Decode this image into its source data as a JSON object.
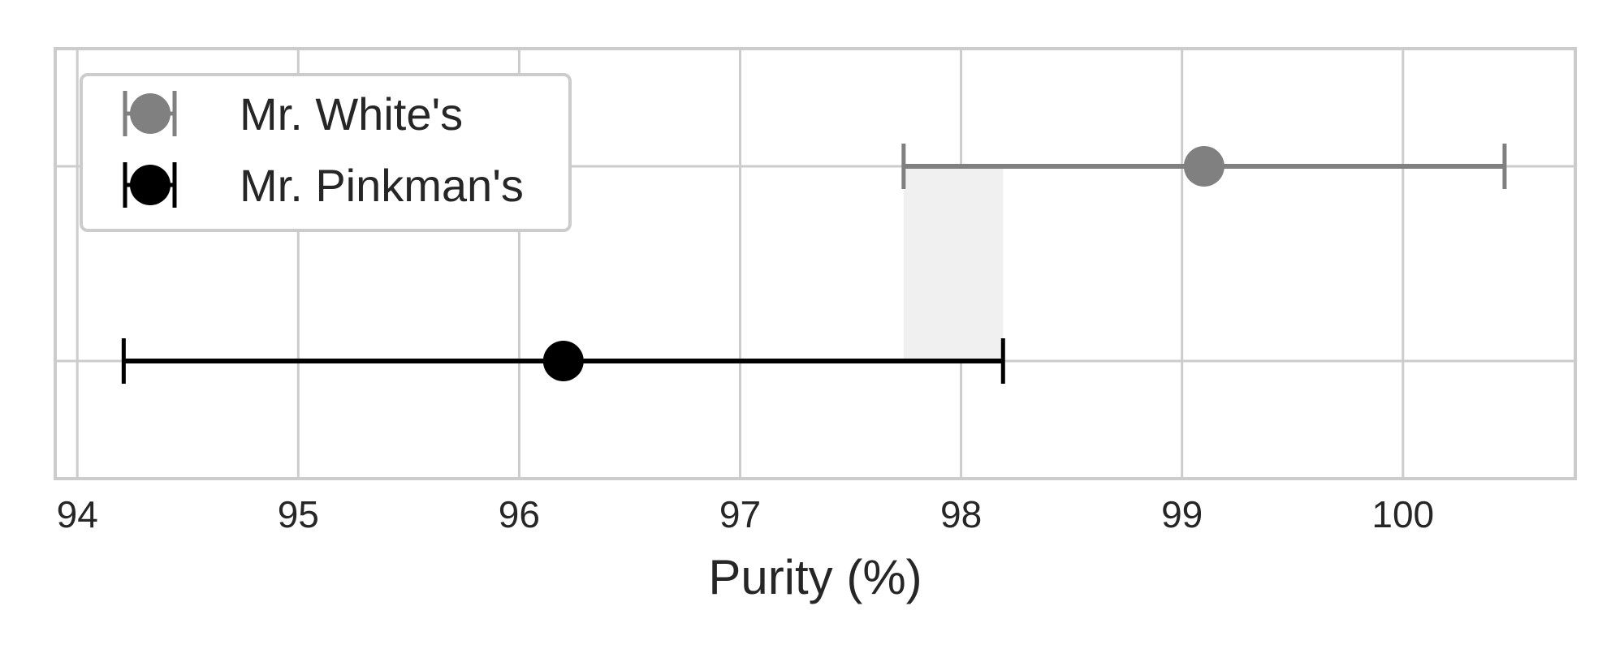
{
  "chart_data": {
    "type": "errorbar",
    "xlabel": "Purity (%)",
    "xlim": [
      93.9,
      100.78
    ],
    "xticks": [
      94,
      95,
      96,
      97,
      98,
      99,
      100
    ],
    "grid": true,
    "legend_placement": "top-left",
    "overlap_region": {
      "x": [
        97.74,
        98.19
      ],
      "color": "#f0f0f0"
    },
    "series": [
      {
        "name": "Mr. White's",
        "mean": 99.1,
        "lower": 97.74,
        "upper": 100.46,
        "color": "#808080"
      },
      {
        "name": "Mr. Pinkman's",
        "mean": 96.2,
        "lower": 94.21,
        "upper": 98.19,
        "color": "#000000"
      }
    ]
  }
}
